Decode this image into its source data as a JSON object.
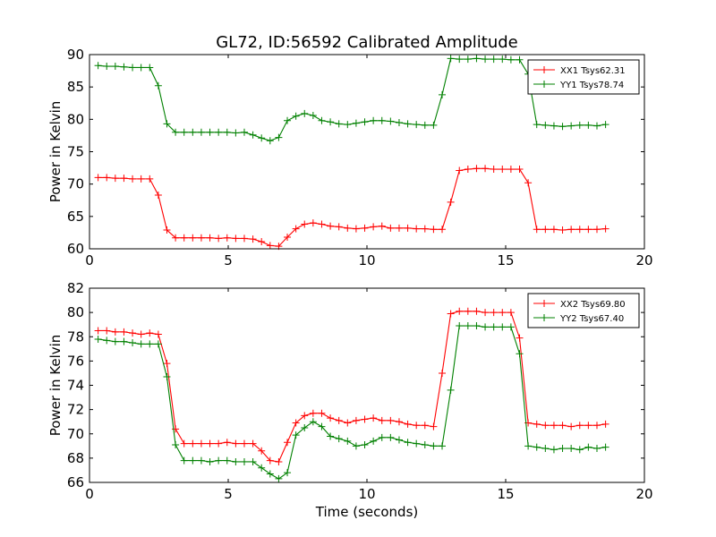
{
  "chart_data": [
    {
      "type": "line",
      "title": "GL72, ID:56592 Calibrated Amplitude",
      "xlabel": "",
      "ylabel": "Power in Kelvin",
      "xlim": [
        0,
        20
      ],
      "ylim": [
        60,
        90
      ],
      "xticks": [
        0,
        5,
        10,
        15,
        20
      ],
      "yticks": [
        60,
        65,
        70,
        75,
        80,
        85,
        90
      ],
      "grid": false,
      "legend_position": "top-right",
      "x": [
        0.31,
        0.62,
        0.93,
        1.24,
        1.55,
        1.86,
        2.17,
        2.48,
        2.79,
        3.1,
        3.41,
        3.72,
        4.03,
        4.34,
        4.65,
        4.96,
        5.27,
        5.58,
        5.89,
        6.2,
        6.51,
        6.82,
        7.13,
        7.44,
        7.75,
        8.06,
        8.37,
        8.68,
        8.99,
        9.3,
        9.61,
        9.92,
        10.23,
        10.54,
        10.85,
        11.16,
        11.47,
        11.78,
        12.09,
        12.4,
        12.71,
        13.02,
        13.33,
        13.64,
        13.95,
        14.26,
        14.57,
        14.88,
        15.19,
        15.5,
        15.81,
        16.12,
        16.43,
        16.74,
        17.05,
        17.36,
        17.67,
        17.98,
        18.29,
        18.6
      ],
      "series": [
        {
          "name": "XX1 Tsys62.31",
          "color": "#ff0000",
          "values": [
            71.0,
            71.0,
            70.9,
            70.9,
            70.8,
            70.8,
            70.8,
            68.3,
            62.9,
            61.7,
            61.7,
            61.7,
            61.7,
            61.7,
            61.6,
            61.7,
            61.6,
            61.6,
            61.5,
            61.1,
            60.5,
            60.4,
            61.8,
            63.1,
            63.8,
            64.0,
            63.8,
            63.5,
            63.4,
            63.2,
            63.1,
            63.2,
            63.4,
            63.5,
            63.2,
            63.2,
            63.2,
            63.1,
            63.1,
            63.0,
            63.0,
            67.2,
            72.1,
            72.3,
            72.4,
            72.4,
            72.3,
            72.3,
            72.3,
            72.3,
            70.2,
            63.0,
            63.0,
            63.0,
            62.9,
            63.0,
            63.0,
            63.0,
            63.0,
            63.1
          ]
        },
        {
          "name": "YY1 Tsys78.74",
          "color": "#008000",
          "values": [
            88.3,
            88.2,
            88.2,
            88.1,
            88.0,
            88.0,
            88.0,
            85.2,
            79.3,
            78.0,
            78.0,
            78.0,
            78.0,
            78.0,
            78.0,
            78.0,
            77.9,
            78.0,
            77.6,
            77.1,
            76.7,
            77.2,
            79.8,
            80.5,
            80.9,
            80.6,
            79.8,
            79.6,
            79.3,
            79.2,
            79.4,
            79.6,
            79.8,
            79.8,
            79.7,
            79.5,
            79.3,
            79.2,
            79.1,
            79.1,
            83.8,
            89.4,
            89.3,
            89.3,
            89.4,
            89.3,
            89.3,
            89.3,
            89.2,
            89.2,
            87.0,
            79.2,
            79.1,
            79.0,
            78.9,
            79.0,
            79.1,
            79.1,
            79.0,
            79.2
          ]
        }
      ]
    },
    {
      "type": "line",
      "title": "",
      "xlabel": "Time (seconds)",
      "ylabel": "Power in Kelvin",
      "xlim": [
        0,
        20
      ],
      "ylim": [
        66,
        82
      ],
      "xticks": [
        0,
        5,
        10,
        15,
        20
      ],
      "yticks": [
        66,
        68,
        70,
        72,
        74,
        76,
        78,
        80,
        82
      ],
      "grid": false,
      "legend_position": "top-right",
      "x": [
        0.31,
        0.62,
        0.93,
        1.24,
        1.55,
        1.86,
        2.17,
        2.48,
        2.79,
        3.1,
        3.41,
        3.72,
        4.03,
        4.34,
        4.65,
        4.96,
        5.27,
        5.58,
        5.89,
        6.2,
        6.51,
        6.82,
        7.13,
        7.44,
        7.75,
        8.06,
        8.37,
        8.68,
        8.99,
        9.3,
        9.61,
        9.92,
        10.23,
        10.54,
        10.85,
        11.16,
        11.47,
        11.78,
        12.09,
        12.4,
        12.71,
        13.02,
        13.33,
        13.64,
        13.95,
        14.26,
        14.57,
        14.88,
        15.19,
        15.5,
        15.81,
        16.12,
        16.43,
        16.74,
        17.05,
        17.36,
        17.67,
        17.98,
        18.29,
        18.6
      ],
      "series": [
        {
          "name": "XX2 Tsys69.80",
          "color": "#ff0000",
          "values": [
            78.5,
            78.5,
            78.4,
            78.4,
            78.3,
            78.2,
            78.3,
            78.2,
            75.8,
            70.4,
            69.2,
            69.2,
            69.2,
            69.2,
            69.2,
            69.3,
            69.2,
            69.2,
            69.2,
            68.6,
            67.8,
            67.7,
            69.3,
            70.9,
            71.5,
            71.7,
            71.7,
            71.3,
            71.1,
            70.9,
            71.1,
            71.2,
            71.3,
            71.1,
            71.1,
            71.0,
            70.8,
            70.7,
            70.7,
            70.6,
            75.0,
            79.9,
            80.1,
            80.1,
            80.1,
            80.0,
            80.0,
            80.0,
            80.0,
            77.9,
            70.9,
            70.8,
            70.7,
            70.7,
            70.7,
            70.6,
            70.7,
            70.7,
            70.7,
            70.8
          ]
        },
        {
          "name": "YY2 Tsys67.40",
          "color": "#008000",
          "values": [
            77.8,
            77.7,
            77.6,
            77.6,
            77.5,
            77.4,
            77.4,
            77.4,
            74.7,
            69.1,
            67.8,
            67.8,
            67.8,
            67.7,
            67.8,
            67.8,
            67.7,
            67.7,
            67.7,
            67.2,
            66.7,
            66.3,
            66.8,
            69.9,
            70.5,
            71.0,
            70.6,
            69.8,
            69.6,
            69.4,
            69.0,
            69.1,
            69.4,
            69.7,
            69.7,
            69.5,
            69.3,
            69.2,
            69.1,
            69.0,
            69.0,
            73.6,
            78.9,
            78.9,
            78.9,
            78.8,
            78.8,
            78.8,
            78.8,
            76.6,
            69.0,
            68.9,
            68.8,
            68.7,
            68.8,
            68.8,
            68.7,
            68.9,
            68.8,
            68.9
          ]
        }
      ]
    }
  ]
}
